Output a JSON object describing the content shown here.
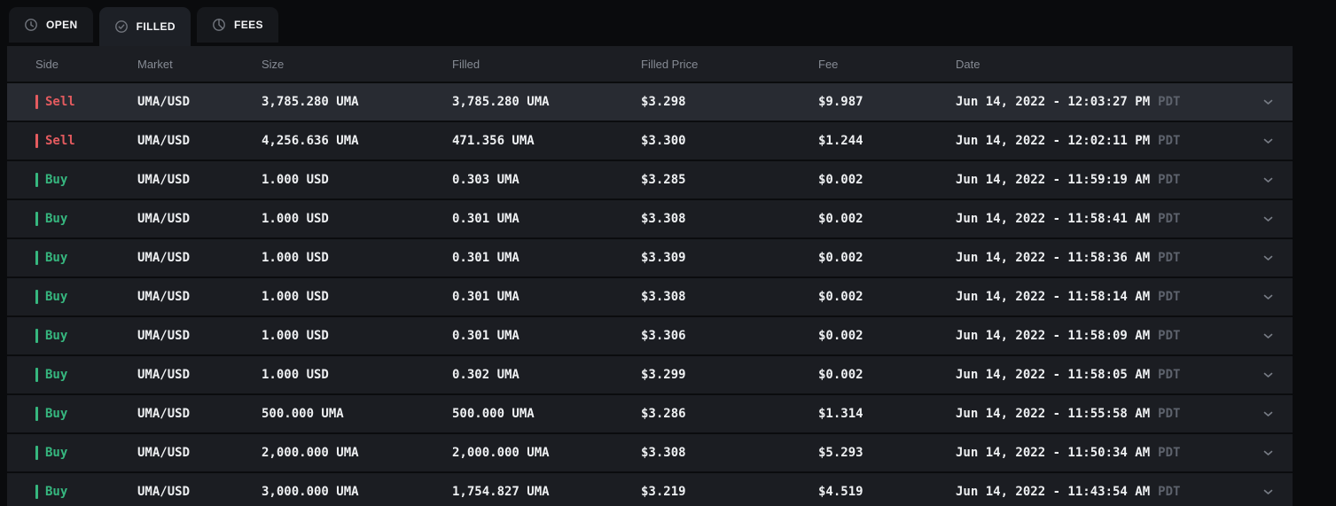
{
  "tabs": [
    {
      "label": "OPEN",
      "icon": "clock-icon",
      "active": false
    },
    {
      "label": "FILLED",
      "icon": "check-circle-icon",
      "active": true
    },
    {
      "label": "FEES",
      "icon": "pie-chart-icon",
      "active": false
    }
  ],
  "table": {
    "columns": [
      "Side",
      "Market",
      "Size",
      "Filled",
      "Filled Price",
      "Fee",
      "Date"
    ],
    "rows": [
      {
        "side": "Sell",
        "market": "UMA/USD",
        "size": "3,785.280 UMA",
        "filled": "3,785.280 UMA",
        "filled_price": "$3.298",
        "fee": "$9.987",
        "date": "Jun 14, 2022 - 12:03:27 PM",
        "tz": "PDT",
        "highlighted": true
      },
      {
        "side": "Sell",
        "market": "UMA/USD",
        "size": "4,256.636 UMA",
        "filled": "471.356 UMA",
        "filled_price": "$3.300",
        "fee": "$1.244",
        "date": "Jun 14, 2022 - 12:02:11 PM",
        "tz": "PDT",
        "highlighted": false
      },
      {
        "side": "Buy",
        "market": "UMA/USD",
        "size": "1.000 USD",
        "filled": "0.303 UMA",
        "filled_price": "$3.285",
        "fee": "$0.002",
        "date": "Jun 14, 2022 - 11:59:19 AM",
        "tz": "PDT",
        "highlighted": false
      },
      {
        "side": "Buy",
        "market": "UMA/USD",
        "size": "1.000 USD",
        "filled": "0.301 UMA",
        "filled_price": "$3.308",
        "fee": "$0.002",
        "date": "Jun 14, 2022 - 11:58:41 AM",
        "tz": "PDT",
        "highlighted": false
      },
      {
        "side": "Buy",
        "market": "UMA/USD",
        "size": "1.000 USD",
        "filled": "0.301 UMA",
        "filled_price": "$3.309",
        "fee": "$0.002",
        "date": "Jun 14, 2022 - 11:58:36 AM",
        "tz": "PDT",
        "highlighted": false
      },
      {
        "side": "Buy",
        "market": "UMA/USD",
        "size": "1.000 USD",
        "filled": "0.301 UMA",
        "filled_price": "$3.308",
        "fee": "$0.002",
        "date": "Jun 14, 2022 - 11:58:14 AM",
        "tz": "PDT",
        "highlighted": false
      },
      {
        "side": "Buy",
        "market": "UMA/USD",
        "size": "1.000 USD",
        "filled": "0.301 UMA",
        "filled_price": "$3.306",
        "fee": "$0.002",
        "date": "Jun 14, 2022 - 11:58:09 AM",
        "tz": "PDT",
        "highlighted": false
      },
      {
        "side": "Buy",
        "market": "UMA/USD",
        "size": "1.000 USD",
        "filled": "0.302 UMA",
        "filled_price": "$3.299",
        "fee": "$0.002",
        "date": "Jun 14, 2022 - 11:58:05 AM",
        "tz": "PDT",
        "highlighted": false
      },
      {
        "side": "Buy",
        "market": "UMA/USD",
        "size": "500.000 UMA",
        "filled": "500.000 UMA",
        "filled_price": "$3.286",
        "fee": "$1.314",
        "date": "Jun 14, 2022 - 11:55:58 AM",
        "tz": "PDT",
        "highlighted": false
      },
      {
        "side": "Buy",
        "market": "UMA/USD",
        "size": "2,000.000 UMA",
        "filled": "2,000.000 UMA",
        "filled_price": "$3.308",
        "fee": "$5.293",
        "date": "Jun 14, 2022 - 11:50:34 AM",
        "tz": "PDT",
        "highlighted": false
      },
      {
        "side": "Buy",
        "market": "UMA/USD",
        "size": "3,000.000 UMA",
        "filled": "1,754.827 UMA",
        "filled_price": "$3.219",
        "fee": "$4.519",
        "date": "Jun 14, 2022 - 11:43:54 AM",
        "tz": "PDT",
        "highlighted": false
      }
    ]
  },
  "colors": {
    "sell": "#e45b5f",
    "buy": "#36b77f",
    "row_bg": "#1b1d22",
    "row_highlight_bg": "#282b32",
    "page_bg": "#0a0b0d"
  }
}
